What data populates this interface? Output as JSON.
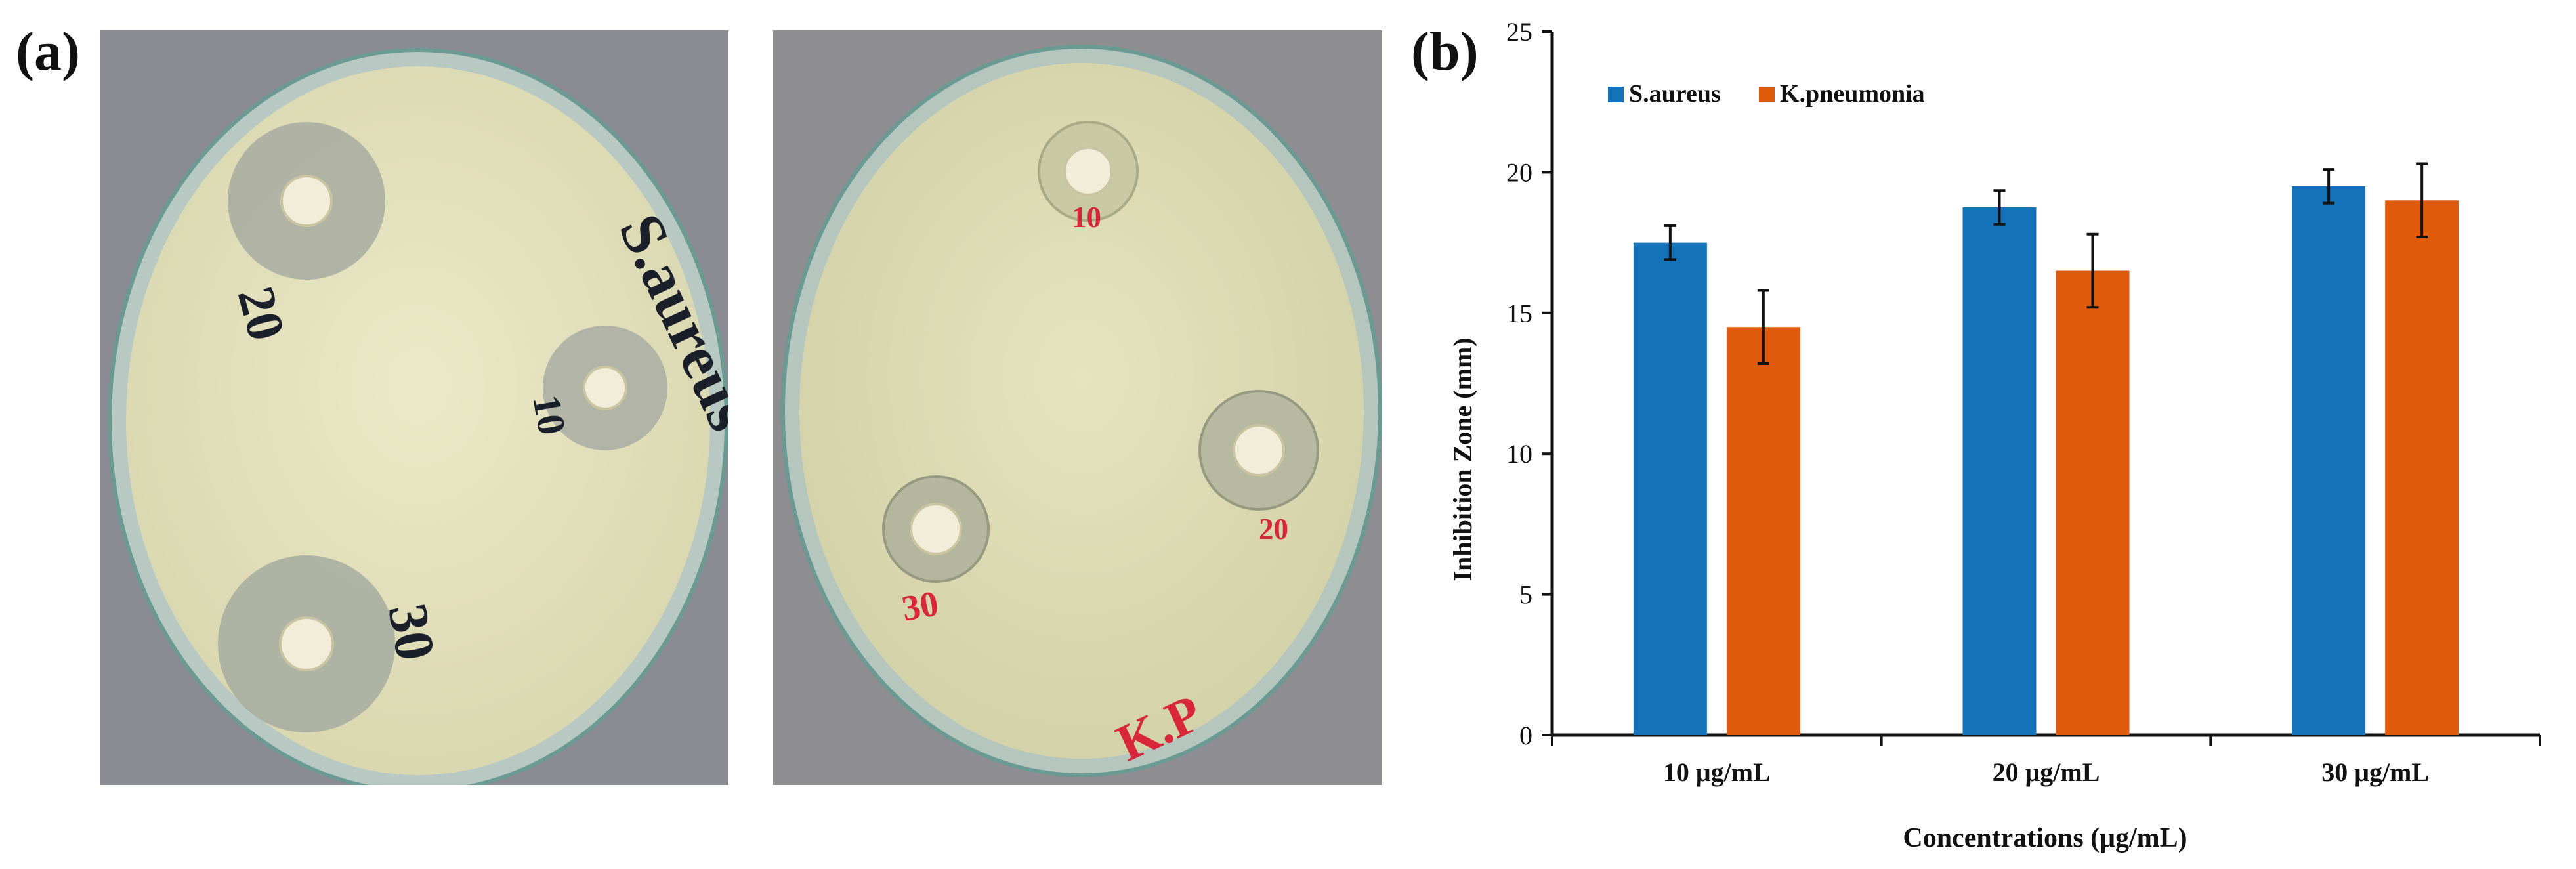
{
  "panels": {
    "a_label": "(a)",
    "b_label": "(b)"
  },
  "photos": {
    "left": {
      "plate_labels": [
        "S.aureus",
        "20",
        "10",
        "30"
      ]
    },
    "right": {
      "plate_labels": [
        "K.P",
        "10",
        "20",
        "30"
      ]
    }
  },
  "chart_data": {
    "type": "bar",
    "categories": [
      "10 μg/mL",
      "20 μg/mL",
      "30 μg/mL"
    ],
    "series": [
      {
        "name": "S.aureus",
        "color": "#1472b8",
        "values": [
          17.5,
          18.75,
          19.5
        ],
        "errors": [
          0.6,
          0.6,
          0.6
        ]
      },
      {
        "name": "K.pneumonia",
        "color": "#e05a0c",
        "values": [
          14.5,
          16.5,
          19.0
        ],
        "errors": [
          1.3,
          1.3,
          1.3
        ]
      }
    ],
    "xlabel": "Concentrations (μg/mL)",
    "ylabel": "Inhibition Zone (mm)",
    "ylim": [
      0,
      25
    ],
    "yticks": [
      0,
      5,
      10,
      15,
      20,
      25
    ],
    "legend_position": "top-left",
    "grid": false
  }
}
